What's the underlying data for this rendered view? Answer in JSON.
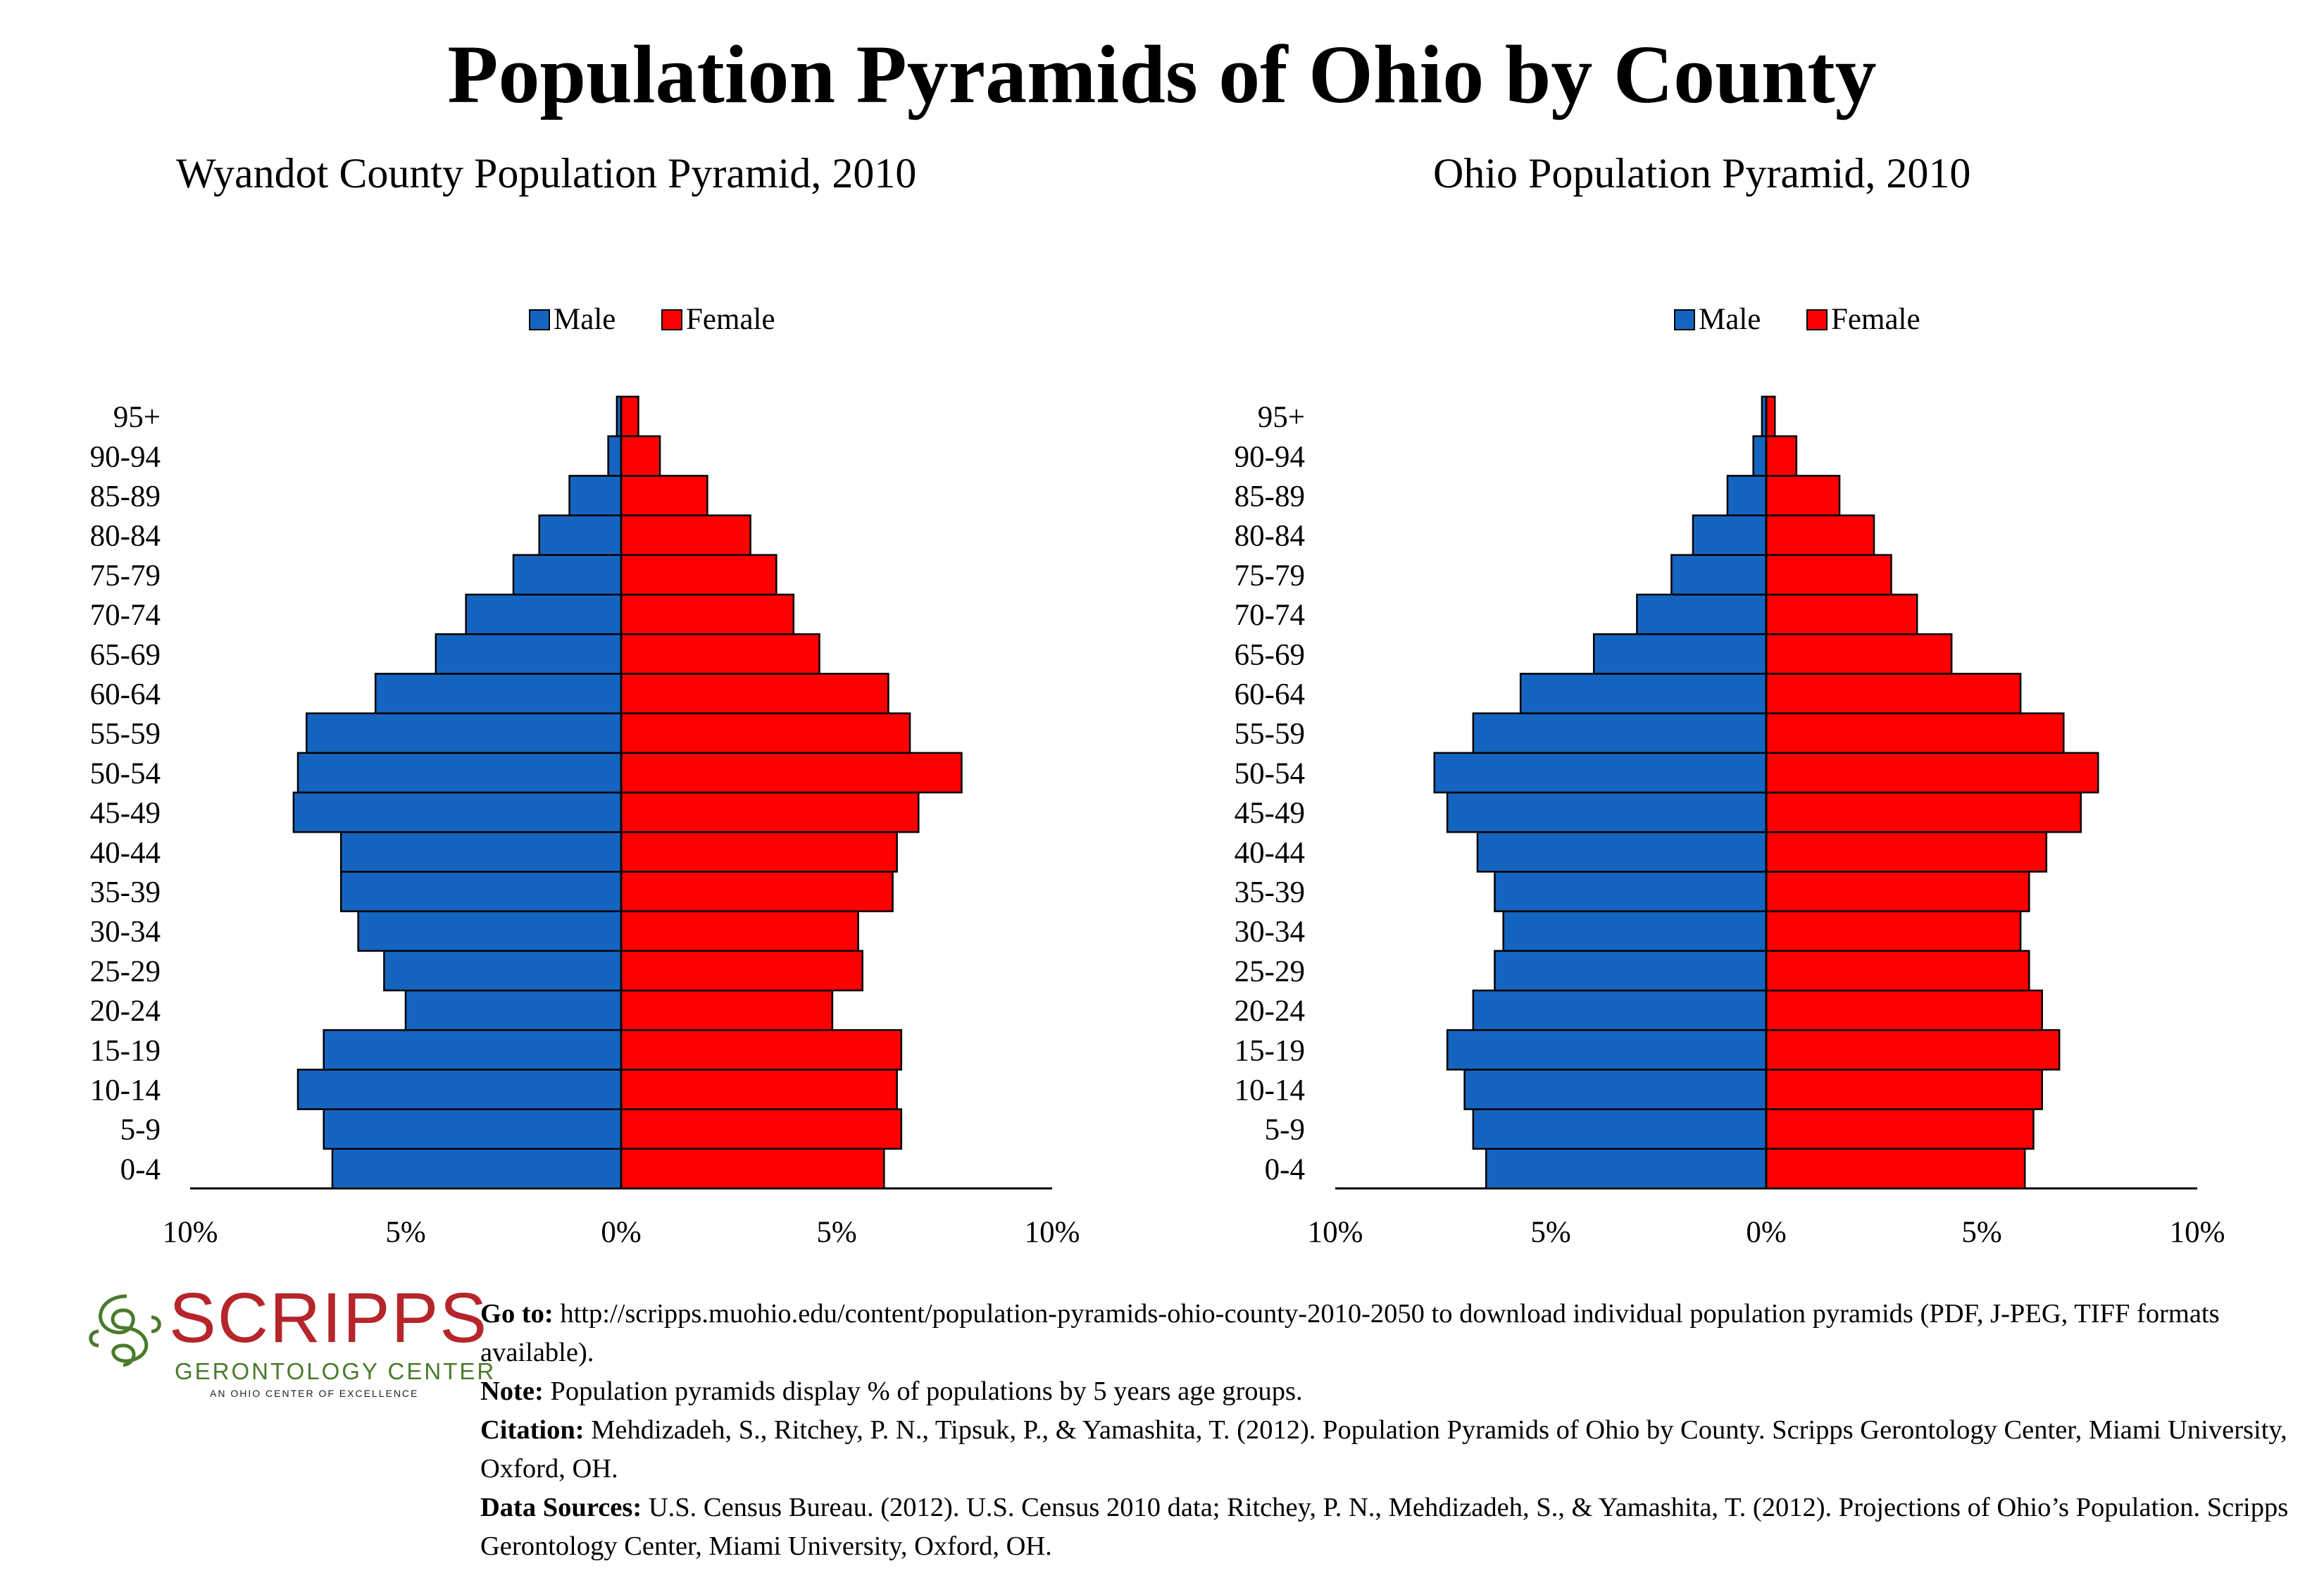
{
  "title": "Population Pyramids of Ohio by County",
  "colors": {
    "male": "#1565C0",
    "female": "#FF0000",
    "logo_red": "#b5252a",
    "logo_green": "#4a7a2c"
  },
  "chart_data": [
    {
      "type": "bar",
      "orientation": "horizontal-pyramid",
      "title": "Wyandot County Population Pyramid, 2010",
      "legend_position": "top-center",
      "categories": [
        "0-4",
        "5-9",
        "10-14",
        "15-19",
        "20-24",
        "25-29",
        "30-34",
        "35-39",
        "40-44",
        "45-49",
        "50-54",
        "55-59",
        "60-64",
        "65-69",
        "70-74",
        "75-79",
        "80-84",
        "85-89",
        "90-94",
        "95+"
      ],
      "series": [
        {
          "name": "Male",
          "values": [
            6.7,
            6.9,
            7.5,
            6.9,
            5.0,
            5.5,
            6.1,
            6.5,
            6.5,
            7.6,
            7.5,
            7.3,
            5.7,
            4.3,
            3.6,
            2.5,
            1.9,
            1.2,
            0.3,
            0.1
          ]
        },
        {
          "name": "Female",
          "values": [
            6.1,
            6.5,
            6.4,
            6.5,
            4.9,
            5.6,
            5.5,
            6.3,
            6.4,
            6.9,
            7.9,
            6.7,
            6.2,
            4.6,
            4.0,
            3.6,
            3.0,
            2.0,
            0.9,
            0.4
          ]
        }
      ],
      "xlim": [
        -10,
        10
      ],
      "x_ticks": [
        "10%",
        "5%",
        "0%",
        "5%",
        "10%"
      ]
    },
    {
      "type": "bar",
      "orientation": "horizontal-pyramid",
      "title": "Ohio Population Pyramid, 2010",
      "legend_position": "top-center",
      "categories": [
        "0-4",
        "5-9",
        "10-14",
        "15-19",
        "20-24",
        "25-29",
        "30-34",
        "35-39",
        "40-44",
        "45-49",
        "50-54",
        "55-59",
        "60-64",
        "65-69",
        "70-74",
        "75-79",
        "80-84",
        "85-89",
        "90-94",
        "95+"
      ],
      "series": [
        {
          "name": "Male",
          "values": [
            6.5,
            6.8,
            7.0,
            7.4,
            6.8,
            6.3,
            6.1,
            6.3,
            6.7,
            7.4,
            7.7,
            6.8,
            5.7,
            4.0,
            3.0,
            2.2,
            1.7,
            0.9,
            0.3,
            0.1
          ]
        },
        {
          "name": "Female",
          "values": [
            6.0,
            6.2,
            6.4,
            6.8,
            6.4,
            6.1,
            5.9,
            6.1,
            6.5,
            7.3,
            7.7,
            6.9,
            5.9,
            4.3,
            3.5,
            2.9,
            2.5,
            1.7,
            0.7,
            0.2
          ]
        }
      ],
      "xlim": [
        -10,
        10
      ],
      "x_ticks": [
        "10%",
        "5%",
        "0%",
        "5%",
        "10%"
      ]
    }
  ],
  "logo": {
    "word": "SCRIPPS",
    "sub": "GERONTOLOGY CENTER",
    "tag": "AN OHIO CENTER OF EXCELLENCE"
  },
  "footer": {
    "goto_label": "Go to:",
    "goto_text": "http://scripps.muohio.edu/content/population-pyramids-ohio-county-2010-2050 to download individual population pyramids (PDF, J-PEG, TIFF formats available).",
    "note_label": "Note:",
    "note_text": "Population pyramids display % of populations by 5 years age groups.",
    "citation_label": "Citation:",
    "citation_text": "Mehdizadeh, S., Ritchey, P. N., Tipsuk, P., & Yamashita, T. (2012). Population Pyramids of Ohio by County. Scripps Gerontology Center, Miami University, Oxford, OH.",
    "sources_label": "Data Sources:",
    "sources_text": "U.S. Census Bureau. (2012). U.S. Census 2010 data; Ritchey, P. N., Mehdizadeh, S., & Yamashita, T. (2012). Projections of Ohio’s Population. Scripps Gerontology Center, Miami University, Oxford, OH."
  }
}
